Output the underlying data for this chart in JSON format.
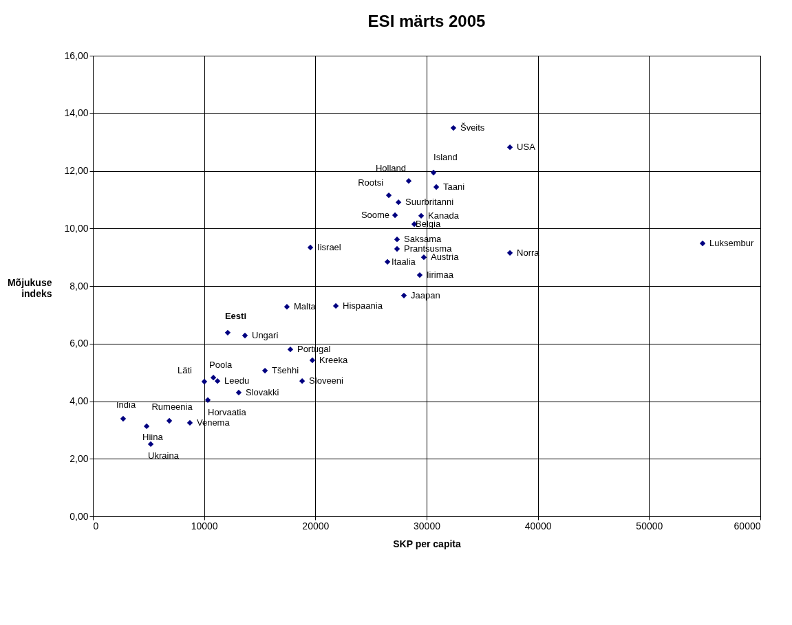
{
  "chart_data": {
    "type": "scatter",
    "title": "ESI märts 2005",
    "xlabel": "SKP per capita",
    "ylabel": "Mõjukuse indeks",
    "x": [
      32410,
      37490,
      30620,
      28390,
      30870,
      26600,
      27470,
      27160,
      29510,
      28890,
      27340,
      27340,
      29750,
      26480,
      29380,
      19550,
      27960,
      17440,
      21840,
      12120,
      13670,
      17750,
      19730,
      15470,
      18810,
      10020,
      10830,
      11200,
      13110,
      10330,
      2720,
      4830,
      6870,
      8720,
      5200,
      54810,
      37490
    ],
    "series": [
      {
        "color": "#000080",
        "values": [
          13.49,
          12.82,
          11.94,
          11.65,
          11.44,
          11.15,
          10.91,
          10.46,
          10.44,
          10.15,
          9.62,
          9.29,
          9.0,
          8.84,
          8.38,
          9.34,
          7.67,
          7.28,
          7.31,
          6.38,
          6.28,
          5.8,
          5.42,
          5.06,
          4.7,
          4.68,
          4.82,
          4.7,
          4.3,
          4.04,
          3.39,
          3.13,
          3.32,
          3.25,
          2.51,
          9.48,
          9.15
        ]
      }
    ],
    "annotations": [
      {
        "text": "Šveits",
        "x": 32410,
        "y": 13.49
      },
      {
        "text": "USA",
        "x": 37490,
        "y": 12.82
      },
      {
        "text": "Island",
        "x": 30620,
        "y": 11.94
      },
      {
        "text": "Holland",
        "x": 28390,
        "y": 11.65
      },
      {
        "text": "Taani",
        "x": 30870,
        "y": 11.44
      },
      {
        "text": "Rootsi",
        "x": 26600,
        "y": 11.15
      },
      {
        "text": "Suurbritanni",
        "x": 27470,
        "y": 10.91
      },
      {
        "text": "Soome",
        "x": 27160,
        "y": 10.46
      },
      {
        "text": "Kanada",
        "x": 29510,
        "y": 10.44
      },
      {
        "text": "Belgia",
        "x": 28890,
        "y": 10.15
      },
      {
        "text": "Saksama",
        "x": 27340,
        "y": 9.62
      },
      {
        "text": "Prantsusma",
        "x": 27340,
        "y": 9.29
      },
      {
        "text": "Austria",
        "x": 29750,
        "y": 9.0
      },
      {
        "text": "Itaalia",
        "x": 26480,
        "y": 8.84
      },
      {
        "text": "Iirimaa",
        "x": 29380,
        "y": 8.38
      },
      {
        "text": "Iisrael",
        "x": 19550,
        "y": 9.34
      },
      {
        "text": "Jaapan",
        "x": 27960,
        "y": 7.67
      },
      {
        "text": "Malta",
        "x": 17440,
        "y": 7.28
      },
      {
        "text": "Hispaania",
        "x": 21840,
        "y": 7.31
      },
      {
        "text": "Eesti",
        "x": 12120,
        "y": 6.38
      },
      {
        "text": "Ungari",
        "x": 13670,
        "y": 6.28
      },
      {
        "text": "Portugal",
        "x": 17750,
        "y": 5.8
      },
      {
        "text": "Kreeka",
        "x": 19730,
        "y": 5.42
      },
      {
        "text": "Tšehhi",
        "x": 15470,
        "y": 5.06
      },
      {
        "text": "Sloveeni",
        "x": 18810,
        "y": 4.7
      },
      {
        "text": "Läti",
        "x": 10020,
        "y": 4.68
      },
      {
        "text": "Poola",
        "x": 10830,
        "y": 4.82
      },
      {
        "text": "Leedu",
        "x": 11200,
        "y": 4.7
      },
      {
        "text": "Slovakki",
        "x": 13110,
        "y": 4.3
      },
      {
        "text": "Horvaatia",
        "x": 10330,
        "y": 4.04
      },
      {
        "text": "India",
        "x": 2720,
        "y": 3.39
      },
      {
        "text": "Hiina",
        "x": 4830,
        "y": 3.13
      },
      {
        "text": "Rumeenia",
        "x": 6870,
        "y": 3.32
      },
      {
        "text": "Venema",
        "x": 8720,
        "y": 3.25
      },
      {
        "text": "Ukraina",
        "x": 5200,
        "y": 2.51
      },
      {
        "text": "Luksembur",
        "x": 54810,
        "y": 9.48
      },
      {
        "text": "Norra",
        "x": 37490,
        "y": 9.15
      }
    ],
    "xlim": [
      0,
      60000
    ],
    "xticks": [
      0,
      10000,
      20000,
      30000,
      40000,
      50000,
      60000
    ],
    "ylim": [
      0,
      16
    ],
    "yticks": [
      {
        "value": 0,
        "label": "0,00"
      },
      {
        "value": 2,
        "label": "2,00"
      },
      {
        "value": 4,
        "label": "4,00"
      },
      {
        "value": 6,
        "label": "6,00"
      },
      {
        "value": 8,
        "label": "8,00"
      },
      {
        "value": 10,
        "label": "10,00"
      },
      {
        "value": 12,
        "label": "12,00"
      },
      {
        "value": 14,
        "label": "14,00"
      },
      {
        "value": 16,
        "label": "16,00"
      }
    ],
    "grid": true,
    "marker": "diamond"
  }
}
